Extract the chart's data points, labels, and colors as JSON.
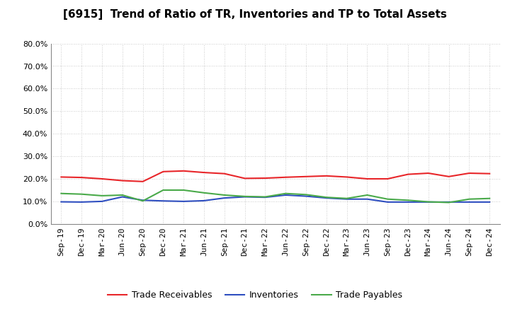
{
  "title": "[6915]  Trend of Ratio of TR, Inventories and TP to Total Assets",
  "x_labels": [
    "Sep-19",
    "Dec-19",
    "Mar-20",
    "Jun-20",
    "Sep-20",
    "Dec-20",
    "Mar-21",
    "Jun-21",
    "Sep-21",
    "Dec-21",
    "Mar-22",
    "Jun-22",
    "Sep-22",
    "Dec-22",
    "Mar-23",
    "Jun-23",
    "Sep-23",
    "Dec-23",
    "Mar-24",
    "Jun-24",
    "Sep-24",
    "Dec-24"
  ],
  "trade_receivables": [
    0.208,
    0.206,
    0.2,
    0.192,
    0.188,
    0.232,
    0.235,
    0.228,
    0.223,
    0.202,
    0.203,
    0.207,
    0.21,
    0.213,
    0.208,
    0.2,
    0.2,
    0.22,
    0.225,
    0.21,
    0.225,
    0.223
  ],
  "inventories": [
    0.098,
    0.097,
    0.1,
    0.12,
    0.105,
    0.102,
    0.1,
    0.103,
    0.115,
    0.12,
    0.118,
    0.128,
    0.123,
    0.115,
    0.11,
    0.11,
    0.097,
    0.097,
    0.097,
    0.097,
    0.097,
    0.097
  ],
  "trade_payables": [
    0.135,
    0.132,
    0.125,
    0.128,
    0.102,
    0.15,
    0.15,
    0.138,
    0.128,
    0.122,
    0.12,
    0.135,
    0.13,
    0.118,
    0.113,
    0.128,
    0.11,
    0.105,
    0.098,
    0.095,
    0.11,
    0.113
  ],
  "tr_color": "#e8262a",
  "inv_color": "#2e4ec0",
  "tp_color": "#4aaa4a",
  "background_color": "#ffffff",
  "grid_color": "#bbbbbb",
  "ylim": [
    0.0,
    0.8
  ],
  "yticks": [
    0.0,
    0.1,
    0.2,
    0.3,
    0.4,
    0.5,
    0.6,
    0.7,
    0.8
  ],
  "legend_labels": [
    "Trade Receivables",
    "Inventories",
    "Trade Payables"
  ],
  "title_fontsize": 11,
  "tick_fontsize": 8,
  "legend_fontsize": 9
}
